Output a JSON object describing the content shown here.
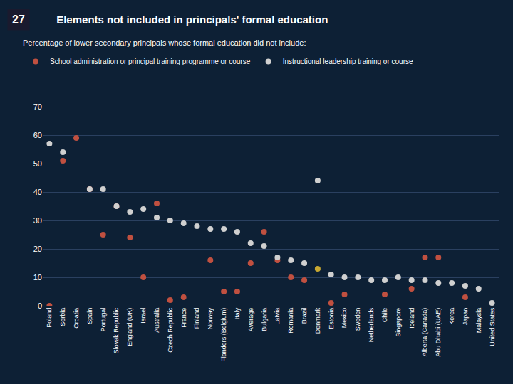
{
  "chart_data": {
    "type": "scatter",
    "title": "Elements not included in principals' formal education",
    "subtitle": "Percentage of lower secondary principals whose formal education did not include:",
    "annotations": [
      "27"
    ],
    "categories": [
      "Poland",
      "Serbia",
      "Croatia",
      "Spain",
      "Portugal",
      "Slovak Republic",
      "England (UK)",
      "Israel",
      "Australia",
      "Czech Republic",
      "France",
      "Finland",
      "Norway",
      "Flanders (Belgium)",
      "Italy",
      "Average",
      "Bulgaria",
      "Latvia",
      "Romania",
      "Brazil",
      "Denmark",
      "Estonia",
      "Mexico",
      "Sweden",
      "Netherlands",
      "Chile",
      "Singapore",
      "Iceland",
      "Alberta (Canada)",
      "Abu Dhabi (UAE)",
      "Korea",
      "Japan",
      "Malaysia",
      "United States"
    ],
    "series": [
      {
        "name": "School administration or principal training programme or course",
        "marker": "circle",
        "colors": [
          "#c05040",
          "#c05040",
          "#c05040",
          "#c05040",
          "#c05040",
          "#c05040",
          "#c05040",
          "#c05040",
          "#c05040",
          "#c05040",
          "#c05040",
          "#c05040",
          "#c05040",
          "#c05040",
          "#c05040",
          "#c05040",
          "#c05040",
          "#c05040",
          "#c05040",
          "#c05040",
          "#c8a832",
          "#c05040",
          "#c05040",
          "#c05040",
          "#c05040",
          "#c05040",
          "#c05040",
          "#c05040",
          "#c05040",
          "#c05040",
          "#c05040",
          "#c05040",
          "#c05040",
          "#c05040"
        ],
        "values": [
          0,
          51,
          59,
          41,
          25,
          35,
          24,
          10,
          36,
          2,
          3,
          null,
          16,
          5,
          5,
          15,
          26,
          16,
          10,
          9,
          13,
          1,
          4,
          null,
          null,
          4,
          null,
          6,
          17,
          17,
          null,
          3,
          null,
          null
        ]
      },
      {
        "name": "Instructional leadership training or course",
        "marker": "circle",
        "color": "#d0d0d0",
        "values": [
          57,
          54,
          null,
          41,
          41,
          35,
          33,
          34,
          31,
          30,
          29,
          28,
          27,
          27,
          26,
          22,
          21,
          17,
          16,
          15,
          44,
          11,
          10,
          10,
          9,
          9,
          10,
          9,
          9,
          8,
          8,
          7,
          6,
          1
        ]
      }
    ],
    "ylim": [
      0,
      70
    ],
    "yticks": [
      0,
      10,
      20,
      30,
      40,
      50,
      60,
      70
    ],
    "grid": true,
    "legend": "upper left"
  }
}
